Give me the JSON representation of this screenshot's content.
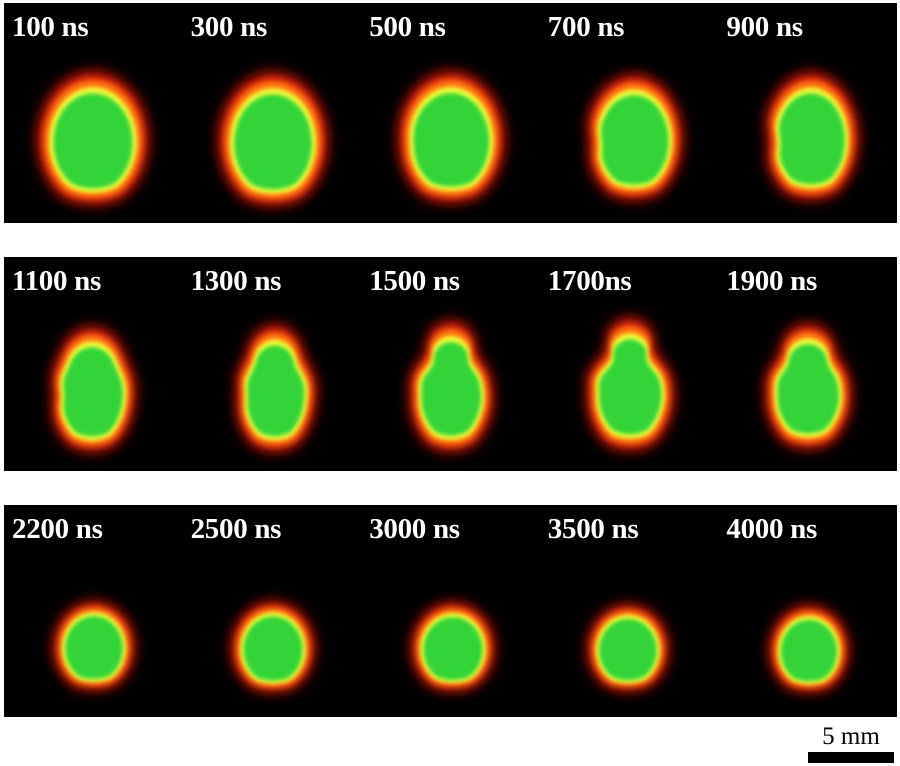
{
  "rows": [
    {
      "frames": [
        {
          "label": "100 ns"
        },
        {
          "label": "300 ns"
        },
        {
          "label": "500 ns"
        },
        {
          "label": "700 ns"
        },
        {
          "label": "900 ns"
        }
      ]
    },
    {
      "frames": [
        {
          "label": "1100 ns"
        },
        {
          "label": "1300 ns"
        },
        {
          "label": "1500 ns"
        },
        {
          "label": "1700ns"
        },
        {
          "label": "1900 ns"
        }
      ]
    },
    {
      "frames": [
        {
          "label": "2200 ns"
        },
        {
          "label": "2500 ns"
        },
        {
          "label": "3000 ns"
        },
        {
          "label": "3500 ns"
        },
        {
          "label": "4000 ns"
        }
      ]
    }
  ],
  "scale_bar": {
    "label": "5 mm"
  },
  "colors": {
    "background": "#000000",
    "outer_glow": "#ff1a0a",
    "orange_ring": "#ff7a0e",
    "yellow_ring": "#f2ff3a",
    "core": "#33d438",
    "label_text": "#ffffff"
  }
}
